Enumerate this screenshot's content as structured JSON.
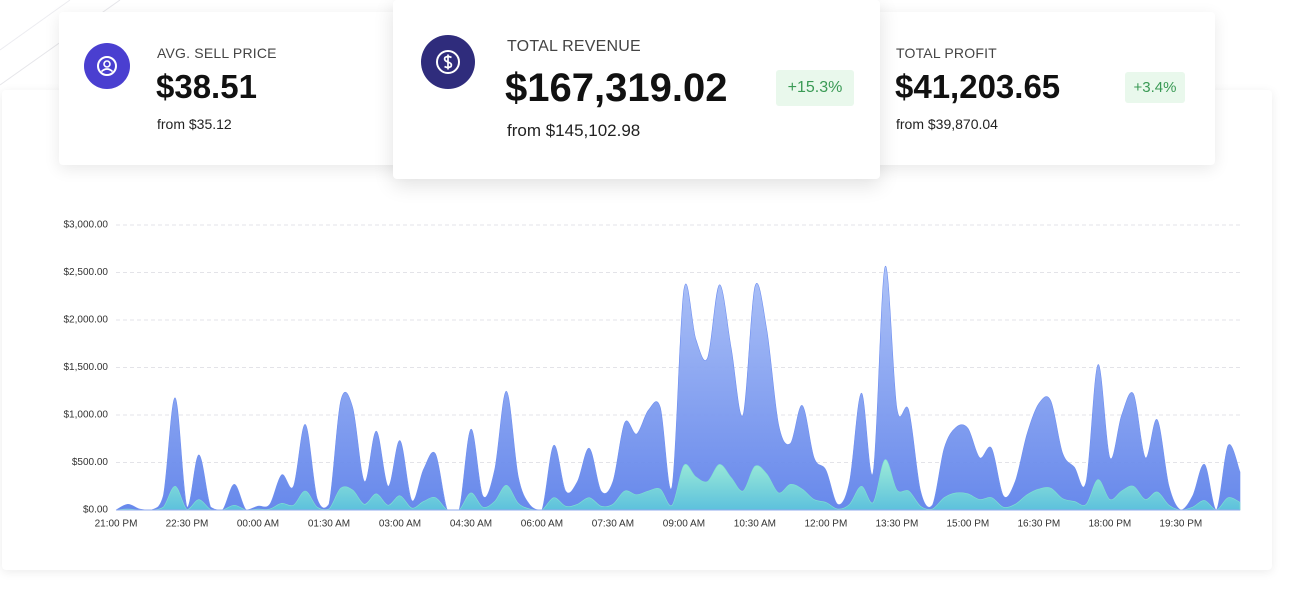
{
  "cards": [
    {
      "label": "AVG. SELL PRICE",
      "value": "$38.51",
      "from": "from $35.12"
    },
    {
      "label": "TOTAL REVENUE",
      "value": "$167,319.02",
      "from": "from $145,102.98",
      "change": "+15.3%"
    },
    {
      "label": "TOTAL PROFIT",
      "value": "$41,203.65",
      "from": "from $39,870.04",
      "change": "+3.4%"
    }
  ],
  "chart_data": {
    "type": "area",
    "categories": [
      "21:00 PM",
      null,
      null,
      null,
      null,
      null,
      "22:30 PM",
      null,
      null,
      null,
      null,
      null,
      "00:00 AM",
      null,
      null,
      null,
      null,
      null,
      "01:30 AM",
      null,
      null,
      null,
      null,
      null,
      "03:00 AM",
      null,
      null,
      null,
      null,
      null,
      "04:30 AM",
      null,
      null,
      null,
      null,
      null,
      "06:00 AM",
      null,
      null,
      null,
      null,
      null,
      "07:30 AM",
      null,
      null,
      null,
      null,
      null,
      "09:00 AM",
      null,
      null,
      null,
      null,
      null,
      "10:30 AM",
      null,
      null,
      null,
      null,
      null,
      "12:00 PM",
      null,
      null,
      null,
      null,
      null,
      "13:30 PM",
      null,
      null,
      null,
      null,
      null,
      "15:00 PM",
      null,
      null,
      null,
      null,
      null,
      "16:30 PM",
      null,
      null,
      null,
      null,
      null,
      "18:00 PM",
      null,
      null,
      null,
      null,
      null,
      "19:30 PM",
      null,
      null,
      null,
      null,
      null
    ],
    "series": [
      {
        "color": "#6f8ff0",
        "values": [
          0,
          60,
          10,
          0,
          150,
          1180,
          30,
          580,
          30,
          0,
          270,
          0,
          40,
          60,
          370,
          250,
          900,
          120,
          60,
          1150,
          1080,
          300,
          830,
          250,
          730,
          100,
          430,
          590,
          0,
          0,
          850,
          150,
          420,
          1250,
          350,
          50,
          0,
          680,
          200,
          300,
          650,
          200,
          300,
          920,
          800,
          1050,
          1080,
          250,
          2320,
          1800,
          1600,
          2370,
          1700,
          1000,
          2350,
          1900,
          900,
          700,
          1100,
          550,
          420,
          60,
          300,
          1230,
          400,
          2560,
          1070,
          1050,
          200,
          50,
          650,
          870,
          860,
          550,
          650,
          150,
          300,
          800,
          1120,
          1150,
          600,
          450,
          300,
          1530,
          550,
          1000,
          1220,
          550,
          950,
          250,
          0,
          150,
          480,
          0,
          680,
          400
        ]
      },
      {
        "color": "#7fe3d0",
        "values": [
          0,
          10,
          0,
          0,
          30,
          250,
          5,
          110,
          5,
          0,
          50,
          0,
          10,
          10,
          70,
          50,
          200,
          30,
          10,
          230,
          210,
          60,
          170,
          50,
          150,
          20,
          90,
          130,
          0,
          0,
          180,
          30,
          90,
          260,
          70,
          10,
          0,
          130,
          40,
          60,
          130,
          40,
          60,
          200,
          160,
          200,
          220,
          50,
          470,
          350,
          300,
          480,
          340,
          200,
          460,
          380,
          180,
          270,
          220,
          110,
          80,
          10,
          60,
          250,
          80,
          530,
          210,
          200,
          40,
          10,
          130,
          180,
          170,
          110,
          130,
          30,
          60,
          160,
          220,
          230,
          120,
          90,
          60,
          320,
          110,
          200,
          250,
          110,
          190,
          50,
          0,
          30,
          100,
          0,
          130,
          80
        ]
      }
    ],
    "ylim": [
      0,
      3000
    ],
    "yticks": [
      {
        "value": 0,
        "label": "$0.00"
      },
      {
        "value": 500,
        "label": "$500.00"
      },
      {
        "value": 1000,
        "label": "$1,000.00"
      },
      {
        "value": 1500,
        "label": "$1,500.00"
      },
      {
        "value": 2000,
        "label": "$2,000.00"
      },
      {
        "value": 2500,
        "label": "$2,500.00"
      },
      {
        "value": 3000,
        "label": "$3,000.00"
      }
    ],
    "grid": true
  }
}
